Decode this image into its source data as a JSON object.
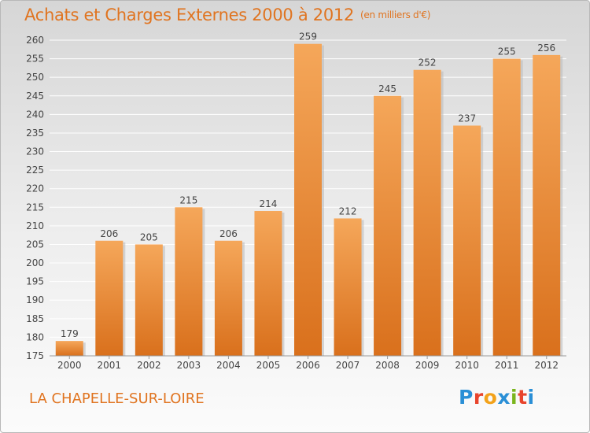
{
  "title": "Achats et Charges Externes 2000 à 2012",
  "subtitle": "(en milliers d'€)",
  "footer_place": "LA CHAPELLE-SUR-LOIRE",
  "logo": {
    "letters": [
      {
        "ch": "P",
        "color": "#2a8fd6"
      },
      {
        "ch": "r",
        "color": "#e8442c"
      },
      {
        "ch": "o",
        "color": "#f3a21a"
      },
      {
        "ch": "x",
        "color": "#2a8fd6"
      },
      {
        "ch": "i",
        "color": "#7ab51d"
      },
      {
        "ch": "t",
        "color": "#e8442c"
      },
      {
        "ch": "i",
        "color": "#2a8fd6"
      }
    ]
  },
  "chart_data": {
    "type": "bar",
    "categories": [
      "2000",
      "2001",
      "2002",
      "2003",
      "2004",
      "2005",
      "2006",
      "2007",
      "2008",
      "2009",
      "2010",
      "2011",
      "2012"
    ],
    "values": [
      179,
      206,
      205,
      215,
      206,
      214,
      259,
      212,
      245,
      252,
      237,
      255,
      256
    ],
    "ylim": [
      175,
      260
    ],
    "yticks": [
      175,
      180,
      185,
      190,
      195,
      200,
      205,
      210,
      215,
      220,
      225,
      230,
      235,
      240,
      245,
      250,
      255,
      260
    ],
    "grid": true,
    "bar_color_top": "#f5a75a",
    "bar_color_bottom": "#d9701c",
    "text_color": "#444444"
  }
}
